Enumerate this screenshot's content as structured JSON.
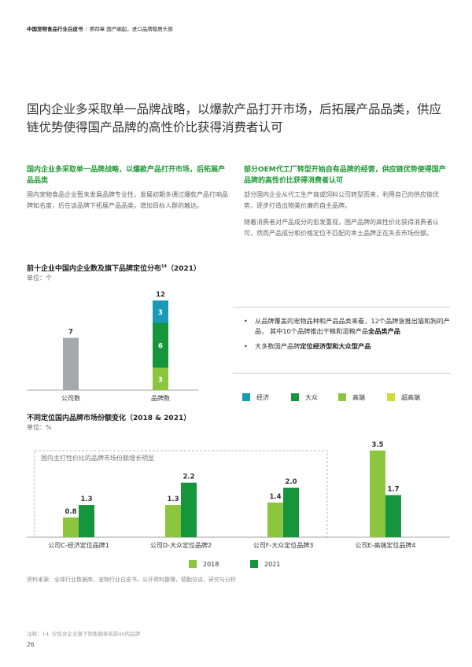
{
  "header": {
    "report_title": "中国宠物食品行业白皮书",
    "chapter": "第四章 国产崛起，进口品牌稳居头部"
  },
  "title": "国内企业多采取单一品牌战略，以爆款产品打开市场，后拓展产品品类，供应链优势使得国产品牌的高性价比获得消费者认可",
  "left_col": {
    "heading": "国内企业多采取单一品牌战略，以爆款产品打开市场，后拓展产品品类",
    "body": "国内宠物食品企业暂未发展品牌专业性，发展初期多通过爆款产品打响品牌知名度，后在该品牌下拓展产品品类，增加目标人群的触达。"
  },
  "right_col": {
    "heading": "部分OEM代工厂转型开始自有品牌的经营，供应链优势使得国产品牌的高性价比获得消费者认可",
    "body1": "部分国内企业从代工生产商或饲料公司转型而来，利用自己的供应链优势，逐步打造出物美价廉的自主品牌。",
    "body2": "随着消费者对产品成分的愈发重视，国产品牌的高性价比获得消费者认可，然而产品成分和价格定位不匹配的本土品牌正在失去市场份额。"
  },
  "chart1": {
    "title": "前十企业中国内企业数及旗下品牌定位分布",
    "title_sup": "14",
    "title_year": "（2021）",
    "unit": "单位：个"
  },
  "chart2": {
    "title": "不同定位国内品牌市场份额变化（2018 & 2021）",
    "unit": "单位：%",
    "annotation": "国内主打性价比的品牌市场份额增长明显"
  },
  "bullets": {
    "b1_pre": "从品牌覆盖的宠物品种和产品品类来看，12个品牌皆推出猫和狗的产品，  其中10个品牌推出干粮和湿粮产品",
    "b1_bold": "全品类产品",
    "b2_pre": "大多数国产品牌",
    "b2_bold": "定位经济型和大众型产品"
  },
  "legend1": [
    {
      "label": "经济",
      "color": "#1a9ab5"
    },
    {
      "label": "大众",
      "color": "#15963c"
    },
    {
      "label": "高端",
      "color": "#8cc63f"
    },
    {
      "label": "超高端",
      "color": "#cddc39"
    }
  ],
  "legend2": [
    {
      "label": "2018",
      "color": "#8cc63f"
    },
    {
      "label": "2021",
      "color": "#15963c"
    }
  ],
  "source": "资料来源：全球行业数据库，宠物行业白皮书，公开资料整理，德勤访谈，研究与分析",
  "note": "注释：14. 仅包含企业旗下销售额排名前40的品牌",
  "page_number": "26",
  "chart_data": [
    {
      "type": "bar",
      "stacked": true,
      "categories": [
        "公司数",
        "品牌数"
      ],
      "series": [
        {
          "name": "公司数",
          "values": [
            7,
            null
          ],
          "color": "#a6a8ab"
        },
        {
          "name": "超高端",
          "values": [
            null,
            0
          ],
          "color": "#cddc39"
        },
        {
          "name": "高端",
          "values": [
            null,
            3
          ],
          "color": "#8cc63f"
        },
        {
          "name": "大众",
          "values": [
            null,
            6
          ],
          "color": "#15963c"
        },
        {
          "name": "经济",
          "values": [
            null,
            3
          ],
          "color": "#1a9ab5"
        }
      ],
      "totals": [
        7,
        12
      ],
      "ylim": [
        0,
        12
      ],
      "grid": false
    },
    {
      "type": "bar",
      "categories": [
        "公司C-经济定位品牌1",
        "公司D-大众定位品牌2",
        "公司F-大众定位品牌3",
        "公司E-高端定位品牌4"
      ],
      "series": [
        {
          "name": "2018",
          "values": [
            0.8,
            1.3,
            1.4,
            3.5
          ],
          "color": "#8cc63f"
        },
        {
          "name": "2021",
          "values": [
            1.3,
            2.2,
            2.0,
            1.7
          ],
          "color": "#15963c"
        }
      ],
      "ylim": [
        0,
        3.5
      ],
      "grid": false,
      "legend": "bottom"
    }
  ]
}
